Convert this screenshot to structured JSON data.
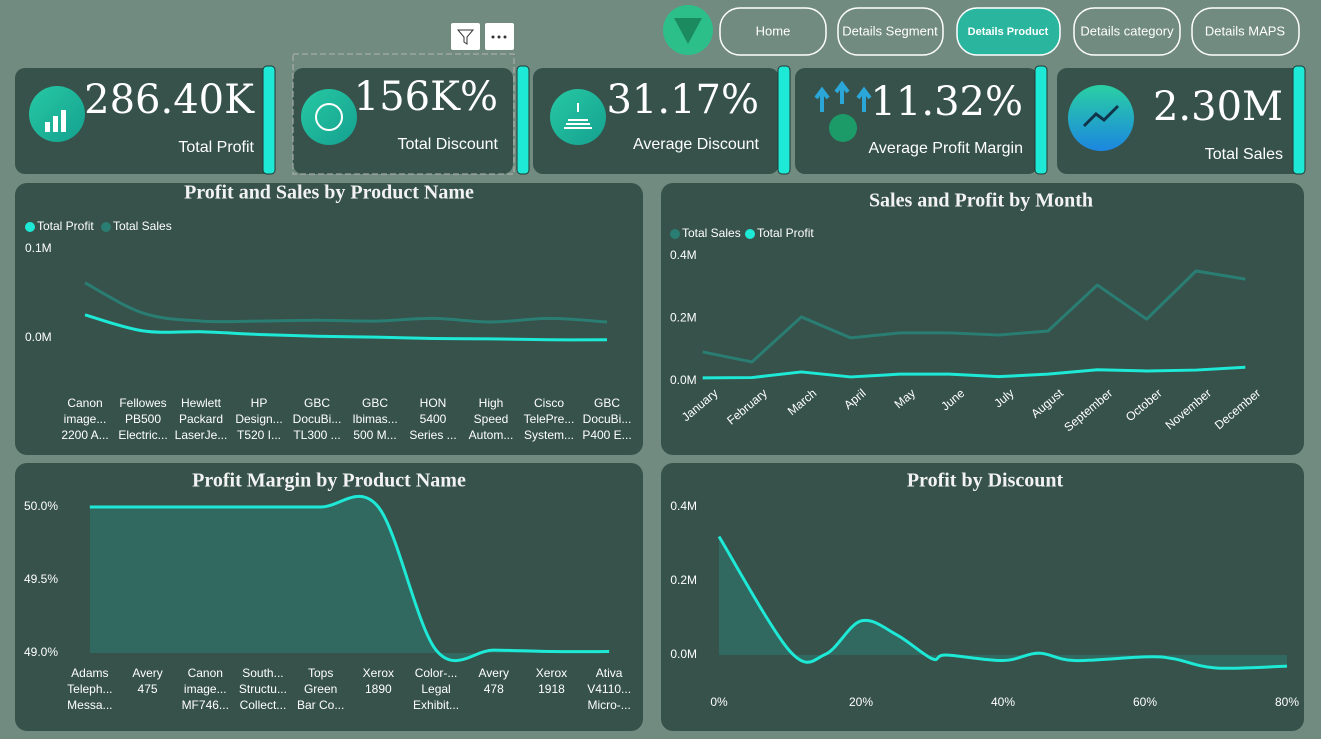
{
  "nav": [
    "Home",
    "Details Segment",
    "Details Product",
    "Details category",
    "Details MAPS"
  ],
  "kpis": [
    {
      "value": "286.40K",
      "label": "Total Profit"
    },
    {
      "value": "156K%",
      "label": "Total Discount"
    },
    {
      "value": "31.17%",
      "label": "Average Discount"
    },
    {
      "value": "11.32%",
      "label": "Average Profit Margin"
    },
    {
      "value": "2.30M",
      "label": "Total Sales"
    }
  ],
  "chart_data": [
    {
      "type": "line",
      "title": "Profit and Sales by Product Name",
      "categories": [
        [
          "Canon",
          "image...",
          "2200 A..."
        ],
        [
          "Fellowes",
          "PB500",
          "Electric..."
        ],
        [
          "Hewlett",
          "Packard",
          "LaserJe..."
        ],
        [
          "HP",
          "Design...",
          "T520 I..."
        ],
        [
          "GBC",
          "DocuBi...",
          "TL300 ..."
        ],
        [
          "GBC",
          "Ibimas...",
          "500 M..."
        ],
        [
          "HON",
          "5400",
          "Series ..."
        ],
        [
          "High",
          "Speed",
          "Autom..."
        ],
        [
          "Cisco",
          "TelePre...",
          "System..."
        ],
        [
          "GBC",
          "DocuBi...",
          "P400 E..."
        ]
      ],
      "series": [
        {
          "name": "Total Profit",
          "color": "#1de9d6",
          "values": [
            26000,
            8000,
            7000,
            4000,
            2000,
            1000,
            -500,
            -1000,
            -2000,
            -2000
          ]
        },
        {
          "name": "Total Sales",
          "color": "#2a7d72",
          "values": [
            62000,
            28000,
            19000,
            19000,
            20000,
            19000,
            22000,
            18000,
            22000,
            18000
          ]
        }
      ],
      "ylim": [
        -50000,
        100000
      ],
      "yticks": [
        {
          "value": 0,
          "label": "0.0M"
        },
        {
          "value": 100000,
          "label": "0.1M"
        }
      ]
    },
    {
      "type": "line",
      "title": "Sales and Profit by Month",
      "categories": [
        [
          "January"
        ],
        [
          "February"
        ],
        [
          "March"
        ],
        [
          "April"
        ],
        [
          "May"
        ],
        [
          "June"
        ],
        [
          "July"
        ],
        [
          "August"
        ],
        [
          "September"
        ],
        [
          "October"
        ],
        [
          "November"
        ],
        [
          "December"
        ]
      ],
      "series": [
        {
          "name": "Total Sales",
          "color": "#2a7d72",
          "values": [
            93000,
            61000,
            205000,
            138000,
            154000,
            154000,
            147000,
            160000,
            307000,
            198000,
            352000,
            326000
          ]
        },
        {
          "name": "Total Profit",
          "color": "#1de9d6",
          "values": [
            10000,
            11000,
            29000,
            13000,
            22000,
            22000,
            14000,
            22000,
            36000,
            32000,
            35000,
            44000
          ]
        }
      ],
      "ylim": [
        0,
        400000
      ],
      "yticks": [
        {
          "value": 0,
          "label": "0.0M"
        },
        {
          "value": 200000,
          "label": "0.2M"
        },
        {
          "value": 400000,
          "label": "0.4M"
        }
      ]
    },
    {
      "type": "area",
      "title": "Profit Margin by Product Name",
      "categories": [
        [
          "Adams",
          "Teleph...",
          "Messa..."
        ],
        [
          "Avery",
          "475"
        ],
        [
          "Canon",
          "image...",
          "MF746..."
        ],
        [
          "South...",
          "Structu...",
          "Collect..."
        ],
        [
          "Tops",
          "Green",
          "Bar Co..."
        ],
        [
          "Xerox",
          "1890"
        ],
        [
          "Color-...",
          "Legal",
          "Exhibit..."
        ],
        [
          "Avery",
          "478"
        ],
        [
          "Xerox",
          "1918"
        ],
        [
          "Ativa",
          "V4110...",
          "Micro-..."
        ]
      ],
      "series": [
        {
          "color": "#1de9d6",
          "values": [
            50,
            50,
            50,
            50,
            50,
            50,
            49.02,
            49.02,
            49.01,
            49.01
          ]
        }
      ],
      "ylim": [
        49,
        50
      ],
      "yticks": [
        {
          "value": 49,
          "label": "49.0%"
        },
        {
          "value": 49.5,
          "label": "49.5%"
        },
        {
          "value": 50,
          "label": "50.0%"
        }
      ]
    },
    {
      "type": "area",
      "title": "Profit by Discount",
      "x": [
        0,
        10,
        15,
        20,
        25,
        30,
        32,
        40,
        45,
        50,
        60,
        64,
        70,
        80
      ],
      "series": [
        {
          "color": "#1de9d6",
          "values": [
            320000,
            10000,
            2000,
            92000,
            55000,
            -10000,
            0,
            -15000,
            5000,
            -15000,
            -5000,
            -10000,
            -35000,
            -30000
          ]
        }
      ],
      "xlim": [
        0,
        80
      ],
      "xticks": [
        {
          "value": 0,
          "label": "0%"
        },
        {
          "value": 20,
          "label": "20%"
        },
        {
          "value": 40,
          "label": "40%"
        },
        {
          "value": 60,
          "label": "60%"
        },
        {
          "value": 80,
          "label": "80%"
        }
      ],
      "ylim": [
        -100000,
        400000
      ],
      "yticks": [
        {
          "value": 0,
          "label": "0.0M"
        },
        {
          "value": 200000,
          "label": "0.2M"
        },
        {
          "value": 400000,
          "label": "0.4M"
        }
      ]
    }
  ]
}
